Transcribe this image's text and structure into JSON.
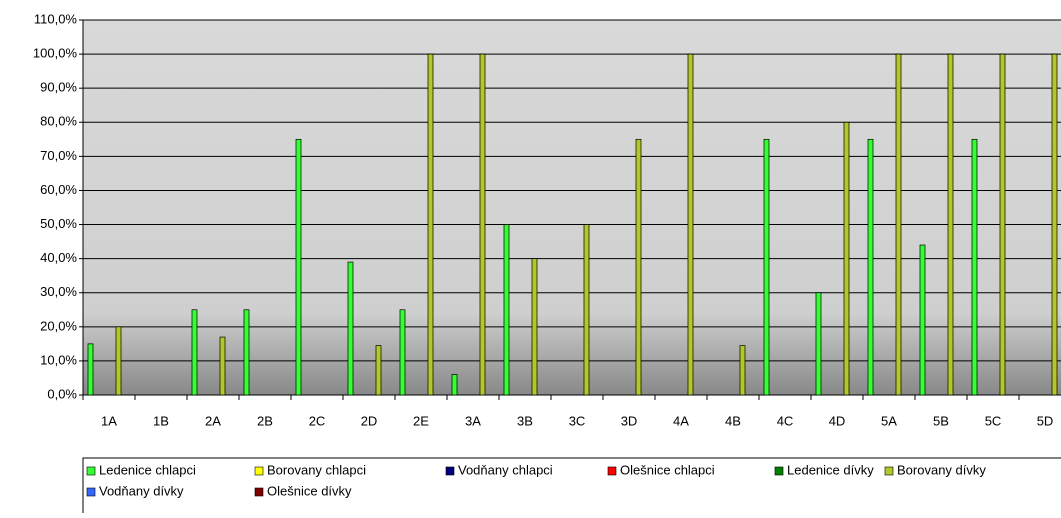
{
  "chart_data": {
    "type": "bar",
    "categories": [
      "1A",
      "1B",
      "2A",
      "2B",
      "2C",
      "2D",
      "2E",
      "3A",
      "3B",
      "3C",
      "3D",
      "4A",
      "4B",
      "4C",
      "4D",
      "5A",
      "5B",
      "5C",
      "5D"
    ],
    "series": [
      {
        "name": "Ledenice chlapci",
        "color": "#33ff33",
        "values": [
          15,
          null,
          25,
          25,
          75,
          39,
          25,
          6,
          50,
          null,
          null,
          null,
          null,
          75,
          30,
          75,
          44,
          75,
          null
        ]
      },
      {
        "name": "Borovany chlapci",
        "color": "#ffff00",
        "values": [
          null,
          null,
          null,
          null,
          null,
          null,
          null,
          null,
          null,
          null,
          null,
          null,
          null,
          null,
          null,
          null,
          null,
          null,
          null
        ]
      },
      {
        "name": "Vodňany chlapci",
        "color": "#000080",
        "values": [
          null,
          null,
          null,
          null,
          null,
          null,
          null,
          null,
          null,
          null,
          null,
          null,
          null,
          null,
          null,
          null,
          null,
          null,
          null
        ]
      },
      {
        "name": "Olešnice chlapci",
        "color": "#ff0000",
        "values": [
          null,
          null,
          null,
          null,
          null,
          null,
          null,
          null,
          null,
          null,
          null,
          null,
          null,
          null,
          null,
          null,
          null,
          null,
          null
        ]
      },
      {
        "name": "Ledenice dívky",
        "color": "#008000",
        "values": [
          null,
          null,
          null,
          null,
          null,
          null,
          null,
          null,
          null,
          null,
          null,
          null,
          null,
          null,
          null,
          null,
          null,
          null,
          null
        ]
      },
      {
        "name": "Borovany dívky",
        "color": "#b3c72b",
        "values": [
          20,
          null,
          17,
          null,
          null,
          14.5,
          100,
          100,
          40,
          50,
          75,
          100,
          14.5,
          null,
          80,
          100,
          100,
          100,
          100
        ]
      },
      {
        "name": "Vodňany dívky",
        "color": "#3366ff",
        "values": [
          null,
          null,
          null,
          null,
          null,
          null,
          null,
          null,
          null,
          null,
          null,
          null,
          null,
          null,
          null,
          null,
          null,
          null,
          null
        ]
      },
      {
        "name": "Olešnice dívky",
        "color": "#800000",
        "values": [
          null,
          null,
          null,
          null,
          null,
          null,
          null,
          null,
          null,
          null,
          null,
          null,
          null,
          null,
          null,
          null,
          null,
          null,
          null
        ]
      }
    ],
    "ylim": [
      0,
      110
    ],
    "yticks": [
      {
        "value": 0,
        "label": "0,0%"
      },
      {
        "value": 10,
        "label": "10,0%"
      },
      {
        "value": 20,
        "label": "20,0%"
      },
      {
        "value": 30,
        "label": "30,0%"
      },
      {
        "value": 40,
        "label": "40,0%"
      },
      {
        "value": 50,
        "label": "50,0%"
      },
      {
        "value": 60,
        "label": "60,0%"
      },
      {
        "value": 70,
        "label": "70,0%"
      },
      {
        "value": 80,
        "label": "80,0%"
      },
      {
        "value": 90,
        "label": "90,0%"
      },
      {
        "value": 100,
        "label": "100,0%"
      },
      {
        "value": 110,
        "label": "110,0%"
      }
    ],
    "grid": true,
    "legend": "bottom"
  }
}
